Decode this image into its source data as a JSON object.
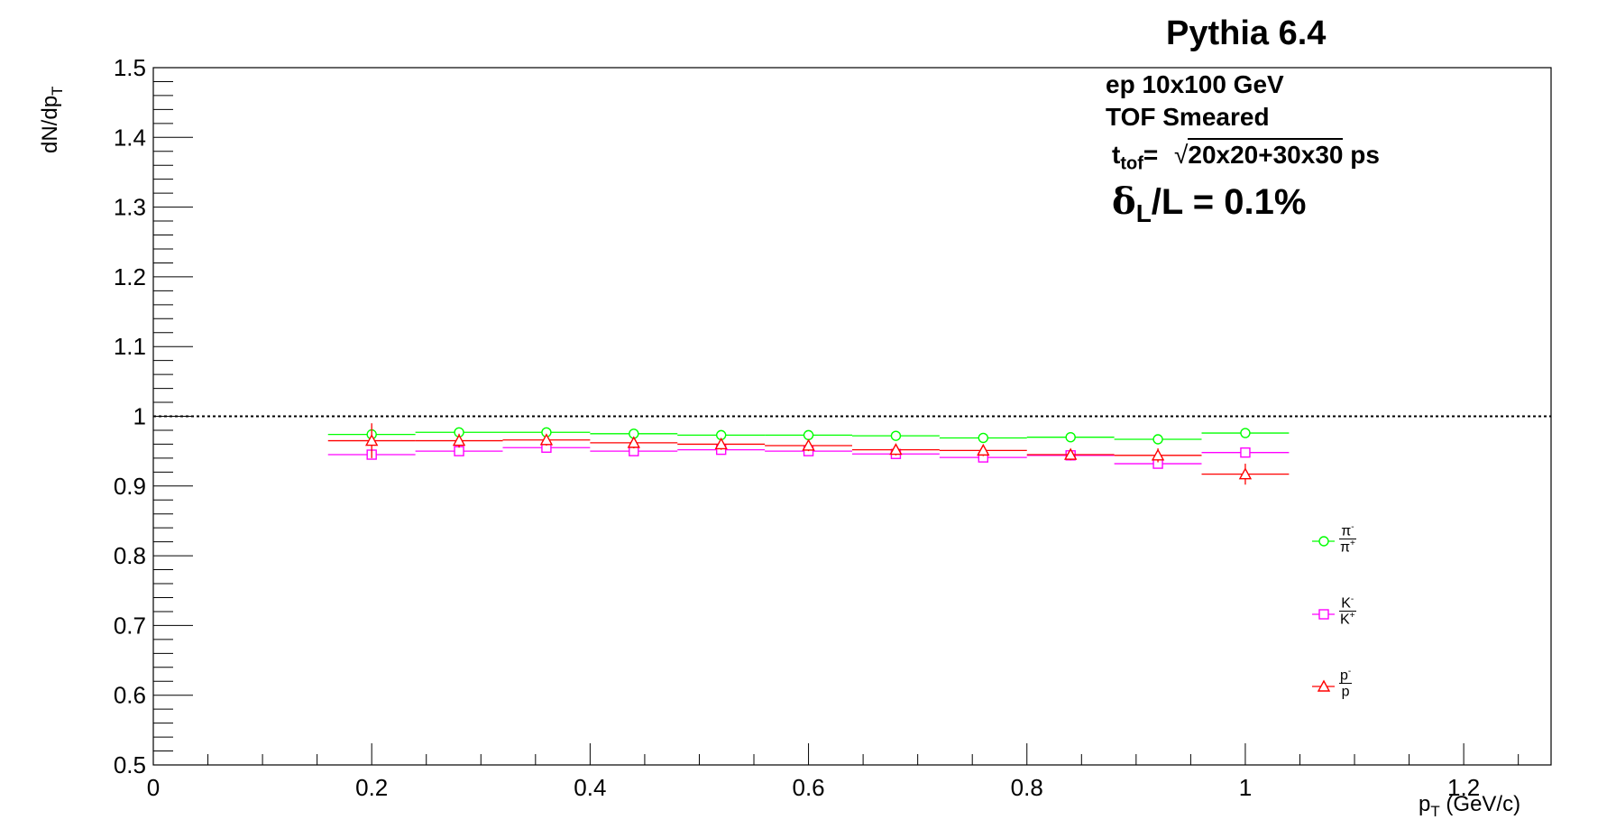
{
  "info": {
    "generator": "Pythia 6.4",
    "beam": "ep 10x100 GeV",
    "smearing": "TOF Smeared",
    "ttof_label": "t",
    "ttof_sub": "tof",
    "ttof_eq": "=",
    "ttof_value": "20x20+30x30",
    "ttof_unit": "ps",
    "delta_symbol": "δ",
    "delta_sub": "L",
    "delta_text": "/L = 0.1%"
  },
  "axes": {
    "ylabel_main": "dN/dp",
    "ylabel_sub": "T",
    "xlabel_main": "p",
    "xlabel_sub": "T",
    "xlabel_rest": " (GeV/c)"
  },
  "legend": {
    "pi_num": "π",
    "pi_num_sup": "-",
    "pi_den": "π",
    "pi_den_sup": "+",
    "k_num": "K",
    "k_num_sup": "-",
    "k_den": "K",
    "k_den_sup": "+",
    "p_num": "p",
    "p_num_sup": "-",
    "p_den": "p",
    "p_den_sup": ""
  },
  "chart_data": {
    "type": "scatter",
    "xlabel": "p_T (GeV/c)",
    "ylabel": "dN/dp_T",
    "xlim": [
      0,
      1.28
    ],
    "ylim": [
      0.5,
      1.5
    ],
    "x_ticks": [
      0,
      0.2,
      0.4,
      0.6,
      0.8,
      1,
      1.2
    ],
    "x_tick_labels": [
      "0",
      "0.2",
      "0.4",
      "0.6",
      "0.8",
      "1",
      "1.2"
    ],
    "y_ticks": [
      0.5,
      0.6,
      0.7,
      0.8,
      0.9,
      1.0,
      1.1,
      1.2,
      1.3,
      1.4,
      1.5
    ],
    "y_tick_labels": [
      "0.5",
      "0.6",
      "0.7",
      "0.8",
      "0.9",
      "1",
      "1.1",
      "1.2",
      "1.3",
      "1.4",
      "1.5"
    ],
    "reference_line": 1.0,
    "x_bin_half_width": 0.04,
    "x": [
      0.2,
      0.28,
      0.36,
      0.44,
      0.52,
      0.6,
      0.68,
      0.76,
      0.84,
      0.92,
      1.0
    ],
    "legend_position": "right",
    "series": [
      {
        "name": "π-/π+",
        "marker": "circle",
        "color": "#00ff00",
        "values": [
          0.974,
          0.977,
          0.977,
          0.975,
          0.973,
          0.973,
          0.972,
          0.969,
          0.97,
          0.967,
          0.976
        ],
        "errors": [
          0.003,
          0.002,
          0.002,
          0.002,
          0.002,
          0.002,
          0.002,
          0.002,
          0.002,
          0.003,
          0.003
        ]
      },
      {
        "name": "K-/K+",
        "marker": "square",
        "color": "#ff00ff",
        "values": [
          0.945,
          0.95,
          0.955,
          0.95,
          0.952,
          0.95,
          0.946,
          0.941,
          0.944,
          0.932,
          0.948
        ],
        "errors": [
          0.005,
          0.004,
          0.004,
          0.004,
          0.004,
          0.004,
          0.004,
          0.004,
          0.004,
          0.005,
          0.006
        ]
      },
      {
        "name": "p-/p",
        "marker": "triangle",
        "color": "#ff0000",
        "values": [
          0.965,
          0.965,
          0.966,
          0.962,
          0.96,
          0.958,
          0.952,
          0.951,
          0.945,
          0.944,
          0.917
        ],
        "errors": [
          0.025,
          0.01,
          0.008,
          0.008,
          0.008,
          0.008,
          0.008,
          0.008,
          0.008,
          0.01,
          0.015
        ]
      }
    ]
  }
}
